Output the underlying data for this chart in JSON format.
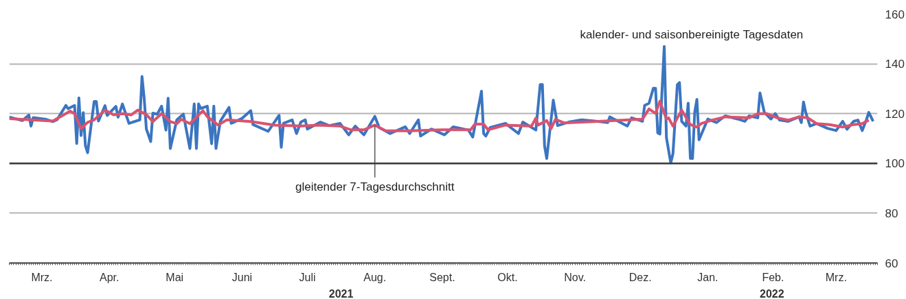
{
  "chart_data": {
    "type": "line",
    "xlim": [
      "2021-03-01",
      "2022-04-04"
    ],
    "xticks": [
      {
        "value": "2021-03-16",
        "label": "Mrz."
      },
      {
        "value": "2021-04-16",
        "label": "Apr."
      },
      {
        "value": "2021-05-16",
        "label": "Mai"
      },
      {
        "value": "2021-06-16",
        "label": "Juni"
      },
      {
        "value": "2021-07-16",
        "label": "Juli"
      },
      {
        "value": "2021-08-16",
        "label": "Aug."
      },
      {
        "value": "2021-09-16",
        "label": "Sept."
      },
      {
        "value": "2021-10-16",
        "label": "Okt."
      },
      {
        "value": "2021-11-16",
        "label": "Nov."
      },
      {
        "value": "2021-12-16",
        "label": "Dez."
      },
      {
        "value": "2022-01-16",
        "label": "Jan."
      },
      {
        "value": "2022-02-15",
        "label": "Feb."
      },
      {
        "value": "2022-03-16",
        "label": "Mrz."
      }
    ],
    "ylim": [
      60,
      160
    ],
    "yticks": [
      60,
      80,
      100,
      120,
      140,
      160
    ],
    "grid": "y",
    "marker": "none",
    "line_style": "solid",
    "ref_lines": [
      {
        "axis": "y",
        "value": 100,
        "color": "#3c3c3c"
      }
    ],
    "annotations": [
      {
        "text": "kalender- und saisonbereinigte Tagesdaten",
        "x": "2021-12-27",
        "y": 147
      },
      {
        "text": "gleitender 7-Tagesdurchschnitt",
        "x": "2021-08-16",
        "y": 115.4
      },
      "2021",
      "2022"
    ],
    "series": [
      {
        "color": "#3b75c0",
        "x": [
          "2021-03-01",
          "2021-03-07",
          "2021-03-10",
          "2021-03-11",
          "2021-03-12",
          "2021-03-18",
          "2021-03-21",
          "2021-03-23",
          "2021-03-27",
          "2021-03-28",
          "2021-03-31",
          "2021-04-01",
          "2021-04-02",
          "2021-04-03",
          "2021-04-04",
          "2021-04-05",
          "2021-04-06",
          "2021-04-09",
          "2021-04-10",
          "2021-04-11",
          "2021-04-14",
          "2021-04-15",
          "2021-04-19",
          "2021-04-20",
          "2021-04-22",
          "2021-04-25",
          "2021-04-30",
          "2021-05-01",
          "2021-05-02",
          "2021-05-03",
          "2021-05-05",
          "2021-05-06",
          "2021-05-08",
          "2021-05-10",
          "2021-05-12",
          "2021-05-13",
          "2021-05-14",
          "2021-05-17",
          "2021-05-20",
          "2021-05-23",
          "2021-05-25",
          "2021-05-26",
          "2021-05-27",
          "2021-05-28",
          "2021-05-31",
          "2021-06-02",
          "2021-06-03",
          "2021-06-04",
          "2021-06-06",
          "2021-06-10",
          "2021-06-11",
          "2021-06-16",
          "2021-06-20",
          "2021-06-21",
          "2021-06-28",
          "2021-07-03",
          "2021-07-04",
          "2021-07-05",
          "2021-07-09",
          "2021-07-11",
          "2021-07-13",
          "2021-07-15",
          "2021-07-16",
          "2021-07-22",
          "2021-07-26",
          "2021-07-31",
          "2021-08-04",
          "2021-08-07",
          "2021-08-11",
          "2021-08-16",
          "2021-08-18",
          "2021-08-23",
          "2021-08-30",
          "2021-09-01",
          "2021-09-05",
          "2021-09-06",
          "2021-09-11",
          "2021-09-17",
          "2021-09-21",
          "2021-09-28",
          "2021-09-30",
          "2021-10-04",
          "2021-10-05",
          "2021-10-06",
          "2021-10-08",
          "2021-10-15",
          "2021-10-21",
          "2021-10-23",
          "2021-10-29",
          "2021-10-31",
          "2021-11-01",
          "2021-11-02",
          "2021-11-03",
          "2021-11-06",
          "2021-11-08",
          "2021-11-13",
          "2021-11-19",
          "2021-11-25",
          "2021-12-01",
          "2021-12-02",
          "2021-12-10",
          "2021-12-12",
          "2021-12-17",
          "2021-12-18",
          "2021-12-20",
          "2021-12-22",
          "2021-12-23",
          "2021-12-24",
          "2021-12-25",
          "2021-12-27",
          "2021-12-28",
          "2021-12-30",
          "2021-12-31",
          "2022-01-02",
          "2022-01-03",
          "2022-01-04",
          "2022-01-06",
          "2022-01-07",
          "2022-01-08",
          "2022-01-09",
          "2022-01-10",
          "2022-01-11",
          "2022-01-12",
          "2022-01-16",
          "2022-01-20",
          "2022-01-24",
          "2022-01-30",
          "2022-02-02",
          "2022-02-04",
          "2022-02-08",
          "2022-02-09",
          "2022-02-11",
          "2022-02-14",
          "2022-02-16",
          "2022-02-18",
          "2022-02-22",
          "2022-02-27",
          "2022-02-28",
          "2022-03-01",
          "2022-03-02",
          "2022-03-04",
          "2022-03-07",
          "2022-03-12",
          "2022-03-16",
          "2022-03-19",
          "2022-03-21",
          "2022-03-24",
          "2022-03-26",
          "2022-03-28",
          "2022-03-30",
          "2022-03-31",
          "2022-04-02"
        ],
        "values": [
          118.6,
          117.2,
          119.4,
          115,
          118.4,
          117.7,
          116.8,
          117.6,
          123.3,
          122,
          123.3,
          108,
          126.3,
          111.2,
          120.4,
          107.1,
          104.3,
          124.9,
          124.9,
          117,
          123.2,
          119.3,
          122.9,
          118.6,
          123.9,
          116.1,
          117.5,
          134.9,
          126.2,
          113.8,
          108.8,
          120.2,
          119.8,
          123,
          113.4,
          126.2,
          106,
          117.5,
          119.8,
          106,
          123.9,
          106,
          123.9,
          122.1,
          123,
          107.9,
          123,
          106,
          117,
          122.5,
          116.1,
          118.1,
          121.2,
          115.6,
          112.9,
          119.3,
          106.5,
          116.1,
          117.5,
          112,
          116.6,
          117.5,
          113.8,
          116.6,
          115.2,
          116.1,
          111.5,
          115,
          111.5,
          118.9,
          114.4,
          112,
          114.7,
          112,
          117.5,
          111,
          113.8,
          111.5,
          114.7,
          113.4,
          110.6,
          129,
          112,
          111,
          114.4,
          116.1,
          112,
          116.6,
          113.4,
          131.7,
          131.7,
          107,
          102,
          125.4,
          115.2,
          116.6,
          117.5,
          117,
          116.4,
          118.7,
          115,
          118.3,
          116.9,
          123.3,
          124.2,
          130.2,
          130.2,
          112.3,
          111.8,
          147,
          110.4,
          100.2,
          103.9,
          131.6,
          132.5,
          116.9,
          115,
          124.2,
          102,
          102,
          120.6,
          125.7,
          109.5,
          117.8,
          116.4,
          119.1,
          117.8,
          116.9,
          119.1,
          118.3,
          128.3,
          120.5,
          117.8,
          120,
          117.4,
          116.9,
          118.7,
          116.4,
          124.7,
          120.5,
          115,
          116,
          114.1,
          113.2,
          116.9,
          113.7,
          116.9,
          117.4,
          113.2,
          117.8,
          120.5,
          116.9
        ]
      },
      {
        "color": "#d9536f",
        "x": [
          "2021-03-01",
          "2021-03-11",
          "2021-03-21",
          "2021-03-26",
          "2021-03-29",
          "2021-03-31",
          "2021-04-03",
          "2021-04-06",
          "2021-04-09",
          "2021-04-14",
          "2021-04-18",
          "2021-04-22",
          "2021-04-26",
          "2021-04-29",
          "2021-05-03",
          "2021-05-06",
          "2021-05-10",
          "2021-05-14",
          "2021-05-17",
          "2021-05-19",
          "2021-05-23",
          "2021-05-29",
          "2021-05-31",
          "2021-06-05",
          "2021-06-09",
          "2021-06-20",
          "2021-07-01",
          "2021-07-13",
          "2021-07-21",
          "2021-07-31",
          "2021-08-05",
          "2021-08-11",
          "2021-08-16",
          "2021-08-21",
          "2021-09-01",
          "2021-09-16",
          "2021-09-29",
          "2021-10-01",
          "2021-10-05",
          "2021-10-07",
          "2021-10-15",
          "2021-10-27",
          "2021-10-29",
          "2021-10-30",
          "2021-11-03",
          "2021-11-05",
          "2021-11-07",
          "2021-11-11",
          "2021-11-25",
          "2021-12-17",
          "2021-12-20",
          "2021-12-23",
          "2021-12-25",
          "2021-12-28",
          "2021-12-29",
          "2021-12-31",
          "2022-01-04",
          "2022-01-08",
          "2022-01-11",
          "2022-01-13",
          "2022-01-18",
          "2022-01-24",
          "2022-02-04",
          "2022-02-08",
          "2022-02-12",
          "2022-02-17",
          "2022-02-22",
          "2022-02-27",
          "2022-03-03",
          "2022-03-07",
          "2022-03-13",
          "2022-03-19",
          "2022-03-24",
          "2022-03-28",
          "2022-03-31"
        ],
        "values": [
          118,
          117.5,
          117,
          119.5,
          121,
          120,
          114,
          116.5,
          117.5,
          121.4,
          119.5,
          120,
          119.5,
          121.4,
          119.6,
          116.8,
          120,
          116.8,
          116,
          117.7,
          116,
          121.2,
          118.8,
          115.4,
          117.5,
          116.8,
          115.4,
          115,
          115.4,
          115,
          113.5,
          113.5,
          115.4,
          113.1,
          113.1,
          113.5,
          113.5,
          115.8,
          115.8,
          113.5,
          115.4,
          115,
          118.2,
          115.4,
          117.2,
          114,
          117.7,
          116.3,
          116.8,
          117.8,
          121.9,
          120.1,
          125,
          117.8,
          118.3,
          115,
          121.4,
          115.6,
          114.6,
          116,
          117.4,
          118.7,
          118.3,
          120,
          120,
          118.3,
          117.4,
          118.7,
          118.3,
          116,
          115.6,
          114.6,
          115.6,
          116,
          117.4
        ]
      }
    ]
  }
}
